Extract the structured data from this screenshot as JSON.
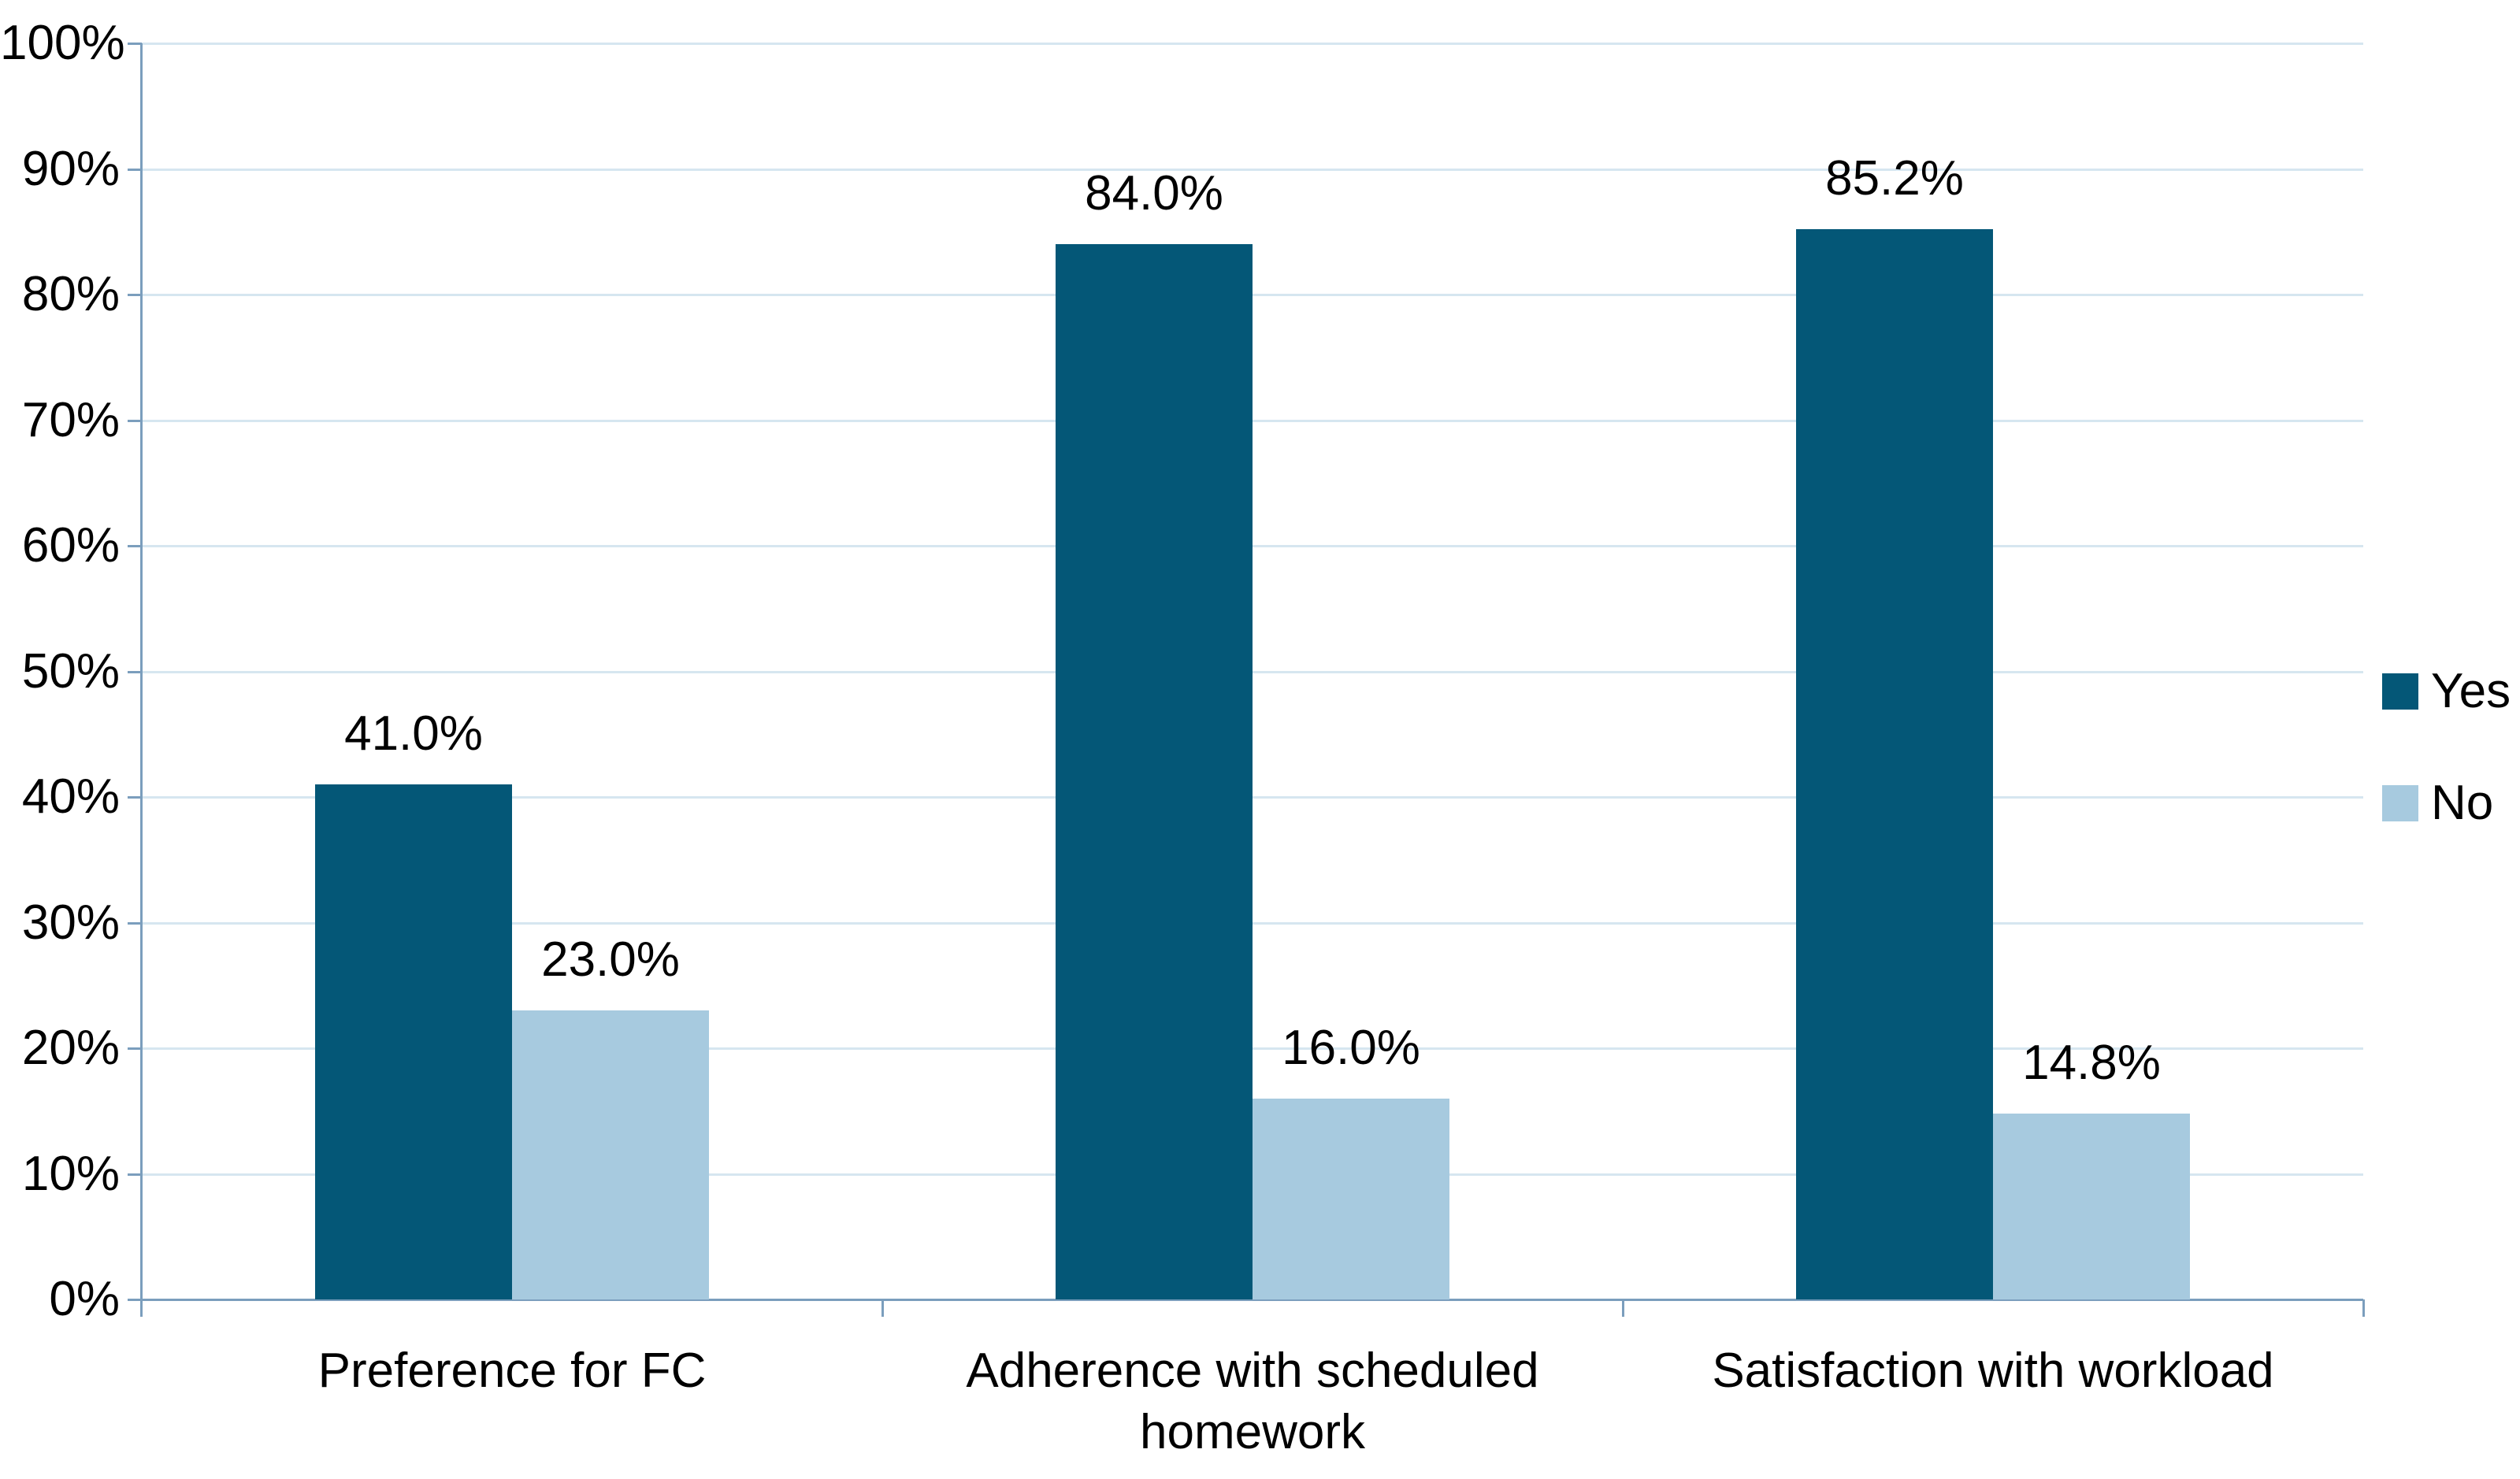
{
  "chart_data": {
    "type": "bar",
    "title": "",
    "xlabel": "",
    "ylabel": "",
    "categories": [
      "Preference for FC",
      "Adherence with scheduled homework",
      "Satisfaction with workload"
    ],
    "series": [
      {
        "name": "Yes",
        "color": "#045777",
        "values": [
          41.0,
          84.0,
          85.2
        ],
        "value_labels": [
          "41.0%",
          "84.0%",
          "85.2%"
        ]
      },
      {
        "name": "No",
        "color": "#A7CADF",
        "values": [
          23.0,
          16.0,
          14.8
        ],
        "value_labels": [
          "23.0%",
          "16.0%",
          "14.8%"
        ]
      }
    ],
    "ylim": [
      0,
      100
    ],
    "ytick_step": 10,
    "ytick_labels": [
      "0%",
      "10%",
      "20%",
      "30%",
      "40%",
      "50%",
      "60%",
      "70%",
      "80%",
      "90%",
      "100%"
    ],
    "grid": true,
    "legend_position": "right",
    "colors": {
      "gridline": "#D6E6F0",
      "axis": "#7B9EBD",
      "text": "#000000",
      "background": "#FFFFFF"
    }
  }
}
